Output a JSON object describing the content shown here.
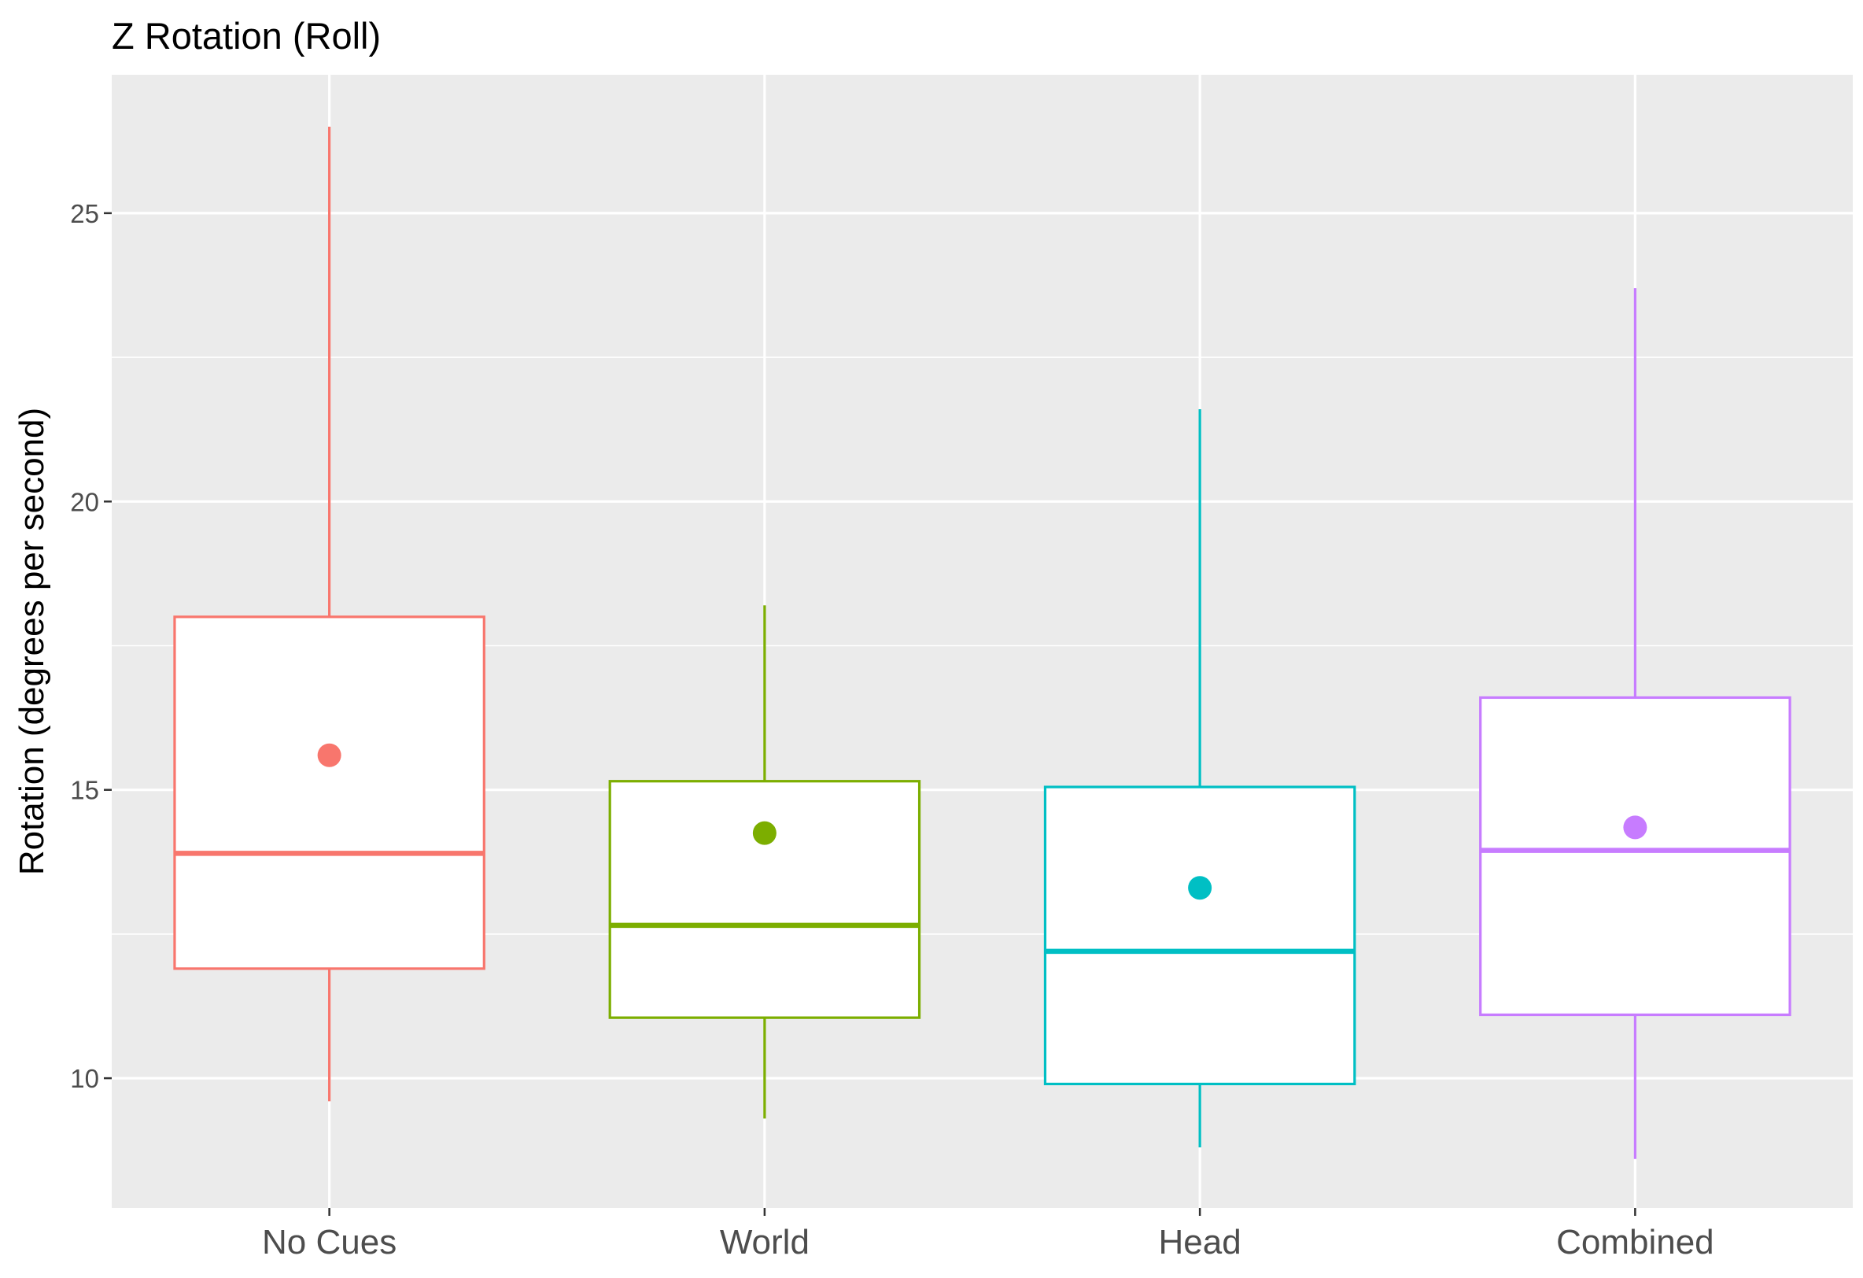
{
  "chart_data": {
    "type": "box",
    "title": "Z Rotation (Roll)",
    "xlabel": "",
    "ylabel": "Rotation (degrees per second)",
    "ylim": [
      7.75,
      27.4
    ],
    "yticks": [
      10,
      15,
      20,
      25
    ],
    "grid": true,
    "legend": "none",
    "background": "#ebebeb",
    "categories": [
      "No Cues",
      "World",
      "Head",
      "Combined"
    ],
    "colors": [
      "#f8766d",
      "#7cae00",
      "#00bfc4",
      "#c77cff"
    ],
    "boxes": [
      {
        "category": "No Cues",
        "whisker_low": 9.6,
        "q1": 11.9,
        "median": 13.9,
        "q3": 18.0,
        "whisker_high": 26.5,
        "mean": 15.6
      },
      {
        "category": "World",
        "whisker_low": 9.3,
        "q1": 11.05,
        "median": 12.65,
        "q3": 15.15,
        "whisker_high": 18.2,
        "mean": 14.25
      },
      {
        "category": "Head",
        "whisker_low": 8.8,
        "q1": 9.9,
        "median": 12.2,
        "q3": 15.05,
        "whisker_high": 21.6,
        "mean": 13.3
      },
      {
        "category": "Combined",
        "whisker_low": 8.6,
        "q1": 11.1,
        "median": 13.95,
        "q3": 16.6,
        "whisker_high": 23.7,
        "mean": 14.35
      }
    ]
  }
}
